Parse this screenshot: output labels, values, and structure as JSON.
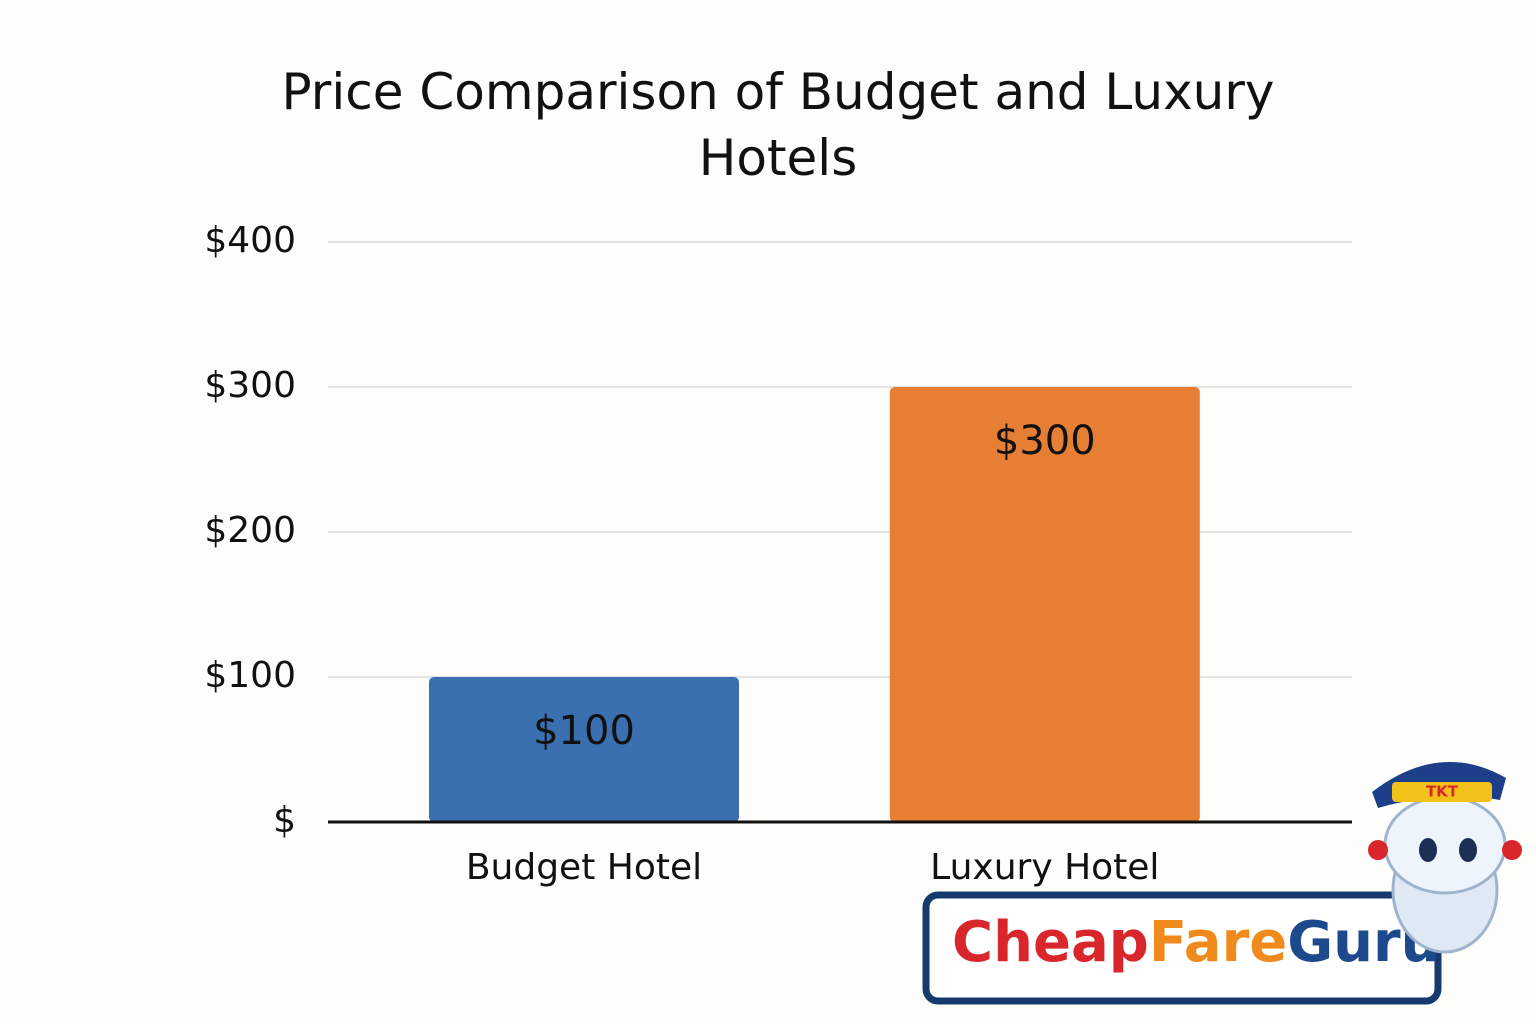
{
  "chart_data": {
    "type": "bar",
    "title": "Price Comparison of Budget and Luxury Hotels",
    "categories": [
      "Budget Hotel",
      "Luxury Hotel"
    ],
    "values": [
      100,
      300
    ],
    "value_labels": [
      "$100",
      "$300"
    ],
    "colors": [
      "#3a70b0",
      "#e67f33"
    ],
    "ylim": [
      0,
      400
    ],
    "yticks": [
      {
        "value": 0,
        "label": "$"
      },
      {
        "value": 100,
        "label": "$100"
      },
      {
        "value": 200,
        "label": "$200"
      },
      {
        "value": 300,
        "label": "$300"
      },
      {
        "value": 400,
        "label": "$400"
      }
    ],
    "grid": true
  },
  "logo": {
    "parts": [
      {
        "text": "Cheap",
        "color": "#d9262b"
      },
      {
        "text": "Fare",
        "color": "#f08a1c"
      },
      {
        "text": "Guru",
        "color": "#1d4a8c"
      }
    ],
    "badge": "TKT"
  }
}
